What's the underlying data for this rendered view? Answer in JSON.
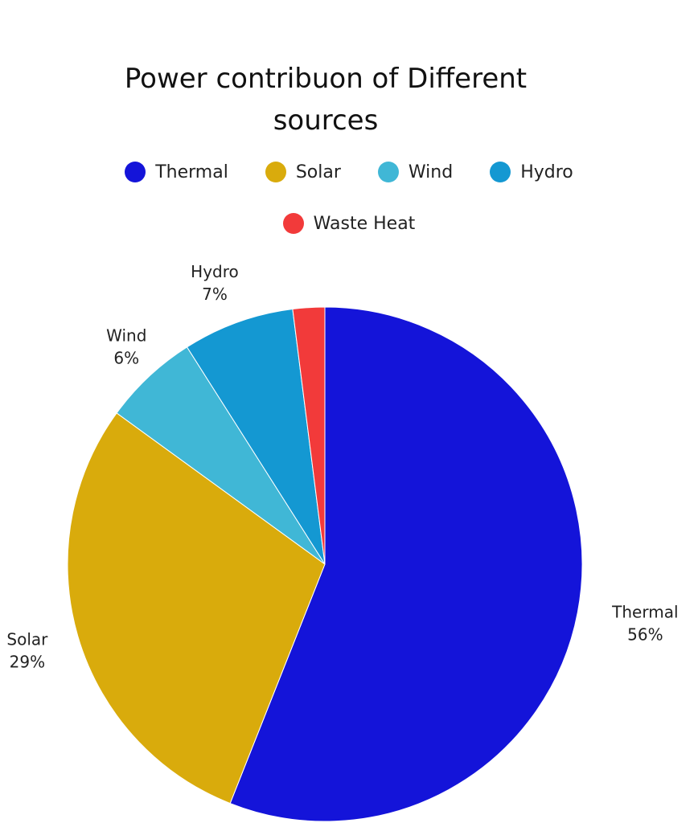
{
  "chart_data": {
    "type": "pie",
    "title": "Power contribuon of Different sources",
    "legend_position": "top",
    "slices": [
      {
        "name": "Thermal",
        "value": 56,
        "label": "56%",
        "color": "#1414d9"
      },
      {
        "name": "Solar",
        "value": 29,
        "label": "29%",
        "color": "#d9ab0c"
      },
      {
        "name": "Wind",
        "value": 6,
        "label": "6%",
        "color": "#40b7d6"
      },
      {
        "name": "Hydro",
        "value": 7,
        "label": "7%",
        "color": "#1498d2"
      },
      {
        "name": "Waste Heat",
        "value": 2,
        "label": "",
        "color": "#f23a3a"
      }
    ]
  }
}
